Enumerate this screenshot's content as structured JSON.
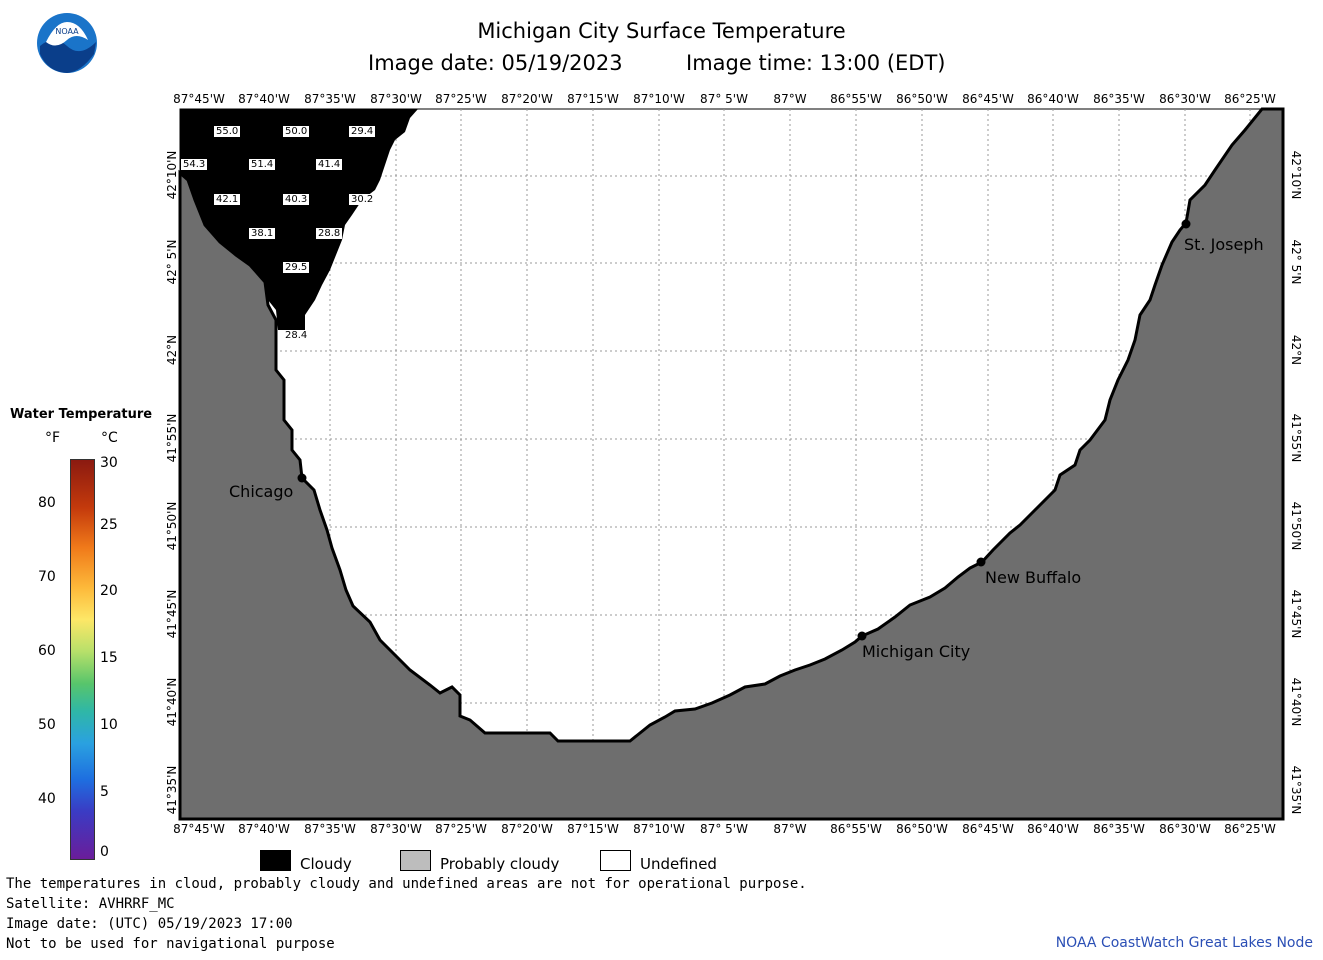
{
  "header": {
    "title": "Michigan City Surface Temperature",
    "subtitle_date": "Image date: 05/19/2023",
    "subtitle_time": "Image time: 13:00 (EDT)"
  },
  "logo": {
    "icon": "noaa-logo-icon",
    "text": "NOAA"
  },
  "map": {
    "lon_labels": [
      "87°45'W",
      "87°40'W",
      "87°35'W",
      "87°30'W",
      "87°25'W",
      "87°20'W",
      "87°15'W",
      "87°10'W",
      "87° 5'W",
      "87°W",
      "86°55'W",
      "86°50'W",
      "86°45'W",
      "86°40'W",
      "86°35'W",
      "86°30'W",
      "86°25'W"
    ],
    "lat_labels": [
      "42°10'N",
      "42° 5'N",
      "42°N",
      "41°55'N",
      "41°50'N",
      "41°45'N",
      "41°40'N",
      "41°35'N"
    ],
    "cities": [
      {
        "name": "Chicago"
      },
      {
        "name": "St. Joseph"
      },
      {
        "name": "New Buffalo"
      },
      {
        "name": "Michigan City"
      }
    ],
    "temps": [
      "55.0",
      "50.0",
      "29.4",
      "54.3",
      "51.4",
      "41.4",
      "42.1",
      "40.3",
      "30.2",
      "38.1",
      "28.8",
      "29.5",
      "28.4"
    ],
    "colors": {
      "land": "#6e6e6e",
      "cloud": "#000000",
      "water_undefined": "#ffffff",
      "grid": "#999999"
    }
  },
  "legend": {
    "title": "Water Temperature",
    "unit_f": "°F",
    "unit_c": "°C",
    "f_labels": [
      "80",
      "70",
      "60",
      "50",
      "40"
    ],
    "c_labels": [
      "30",
      "25",
      "20",
      "15",
      "10",
      "5",
      "0"
    ],
    "range_c": [
      0,
      30
    ]
  },
  "key": {
    "cloudy": "Cloudy",
    "probably_cloudy": "Probably cloudy",
    "undefined": "Undefined"
  },
  "footer": {
    "line1": "The temperatures in cloud, probably cloudy and undefined areas are not for operational purpose.",
    "line2": "Satellite: AVHRRF_MC",
    "line3": "Image date: (UTC) 05/19/2023  17:00",
    "line4": "Not to be used for navigational purpose",
    "credit": "NOAA CoastWatch Great Lakes Node"
  }
}
